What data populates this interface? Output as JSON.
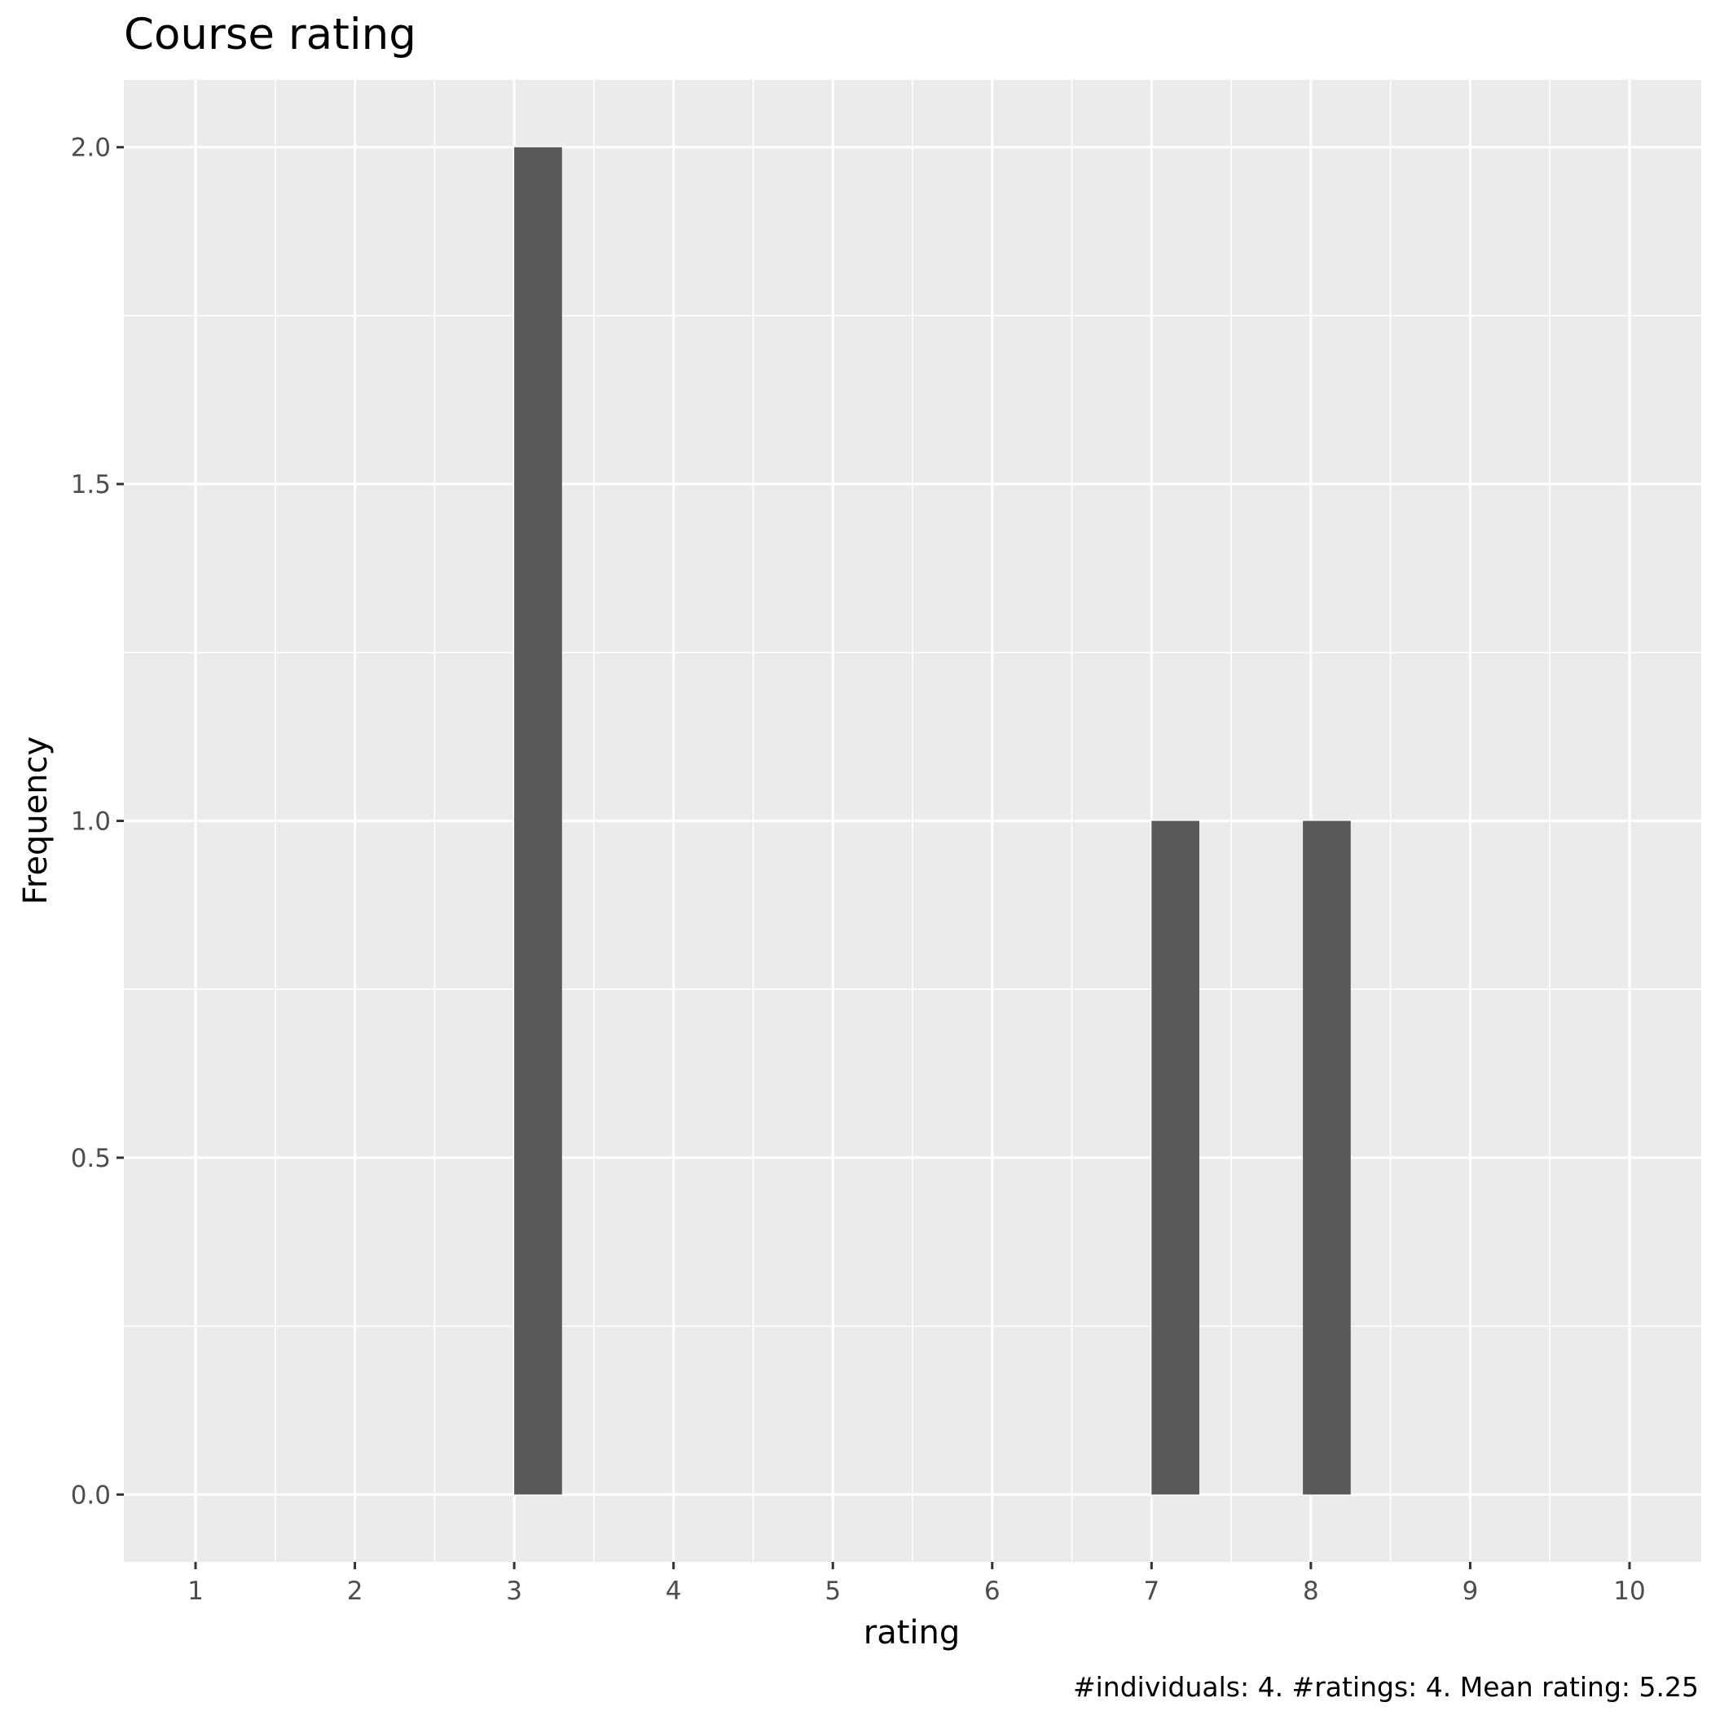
{
  "chart_data": {
    "type": "bar",
    "title": "Course rating",
    "xlabel": "rating",
    "ylabel": "Frequency",
    "caption": "#individuals: 4. #ratings: 4. Mean rating: 5.25",
    "x_ticks": [
      "1",
      "2",
      "3",
      "4",
      "5",
      "6",
      "7",
      "8",
      "9",
      "10"
    ],
    "y_ticks": [
      "0.0",
      "0.5",
      "1.0",
      "1.5",
      "2.0"
    ],
    "xlim": [
      0.55,
      10.45
    ],
    "ylim": [
      -0.1,
      2.1
    ],
    "bars": [
      {
        "x_start": 3.0,
        "x_end": 3.3,
        "value": 2
      },
      {
        "x_start": 7.0,
        "x_end": 7.3,
        "value": 1
      },
      {
        "x_start": 7.95,
        "x_end": 8.25,
        "value": 1
      }
    ],
    "grid": true,
    "colors": {
      "panel_background": "#ebebeb",
      "grid_major": "#ffffff",
      "bar_fill": "#595959"
    }
  }
}
